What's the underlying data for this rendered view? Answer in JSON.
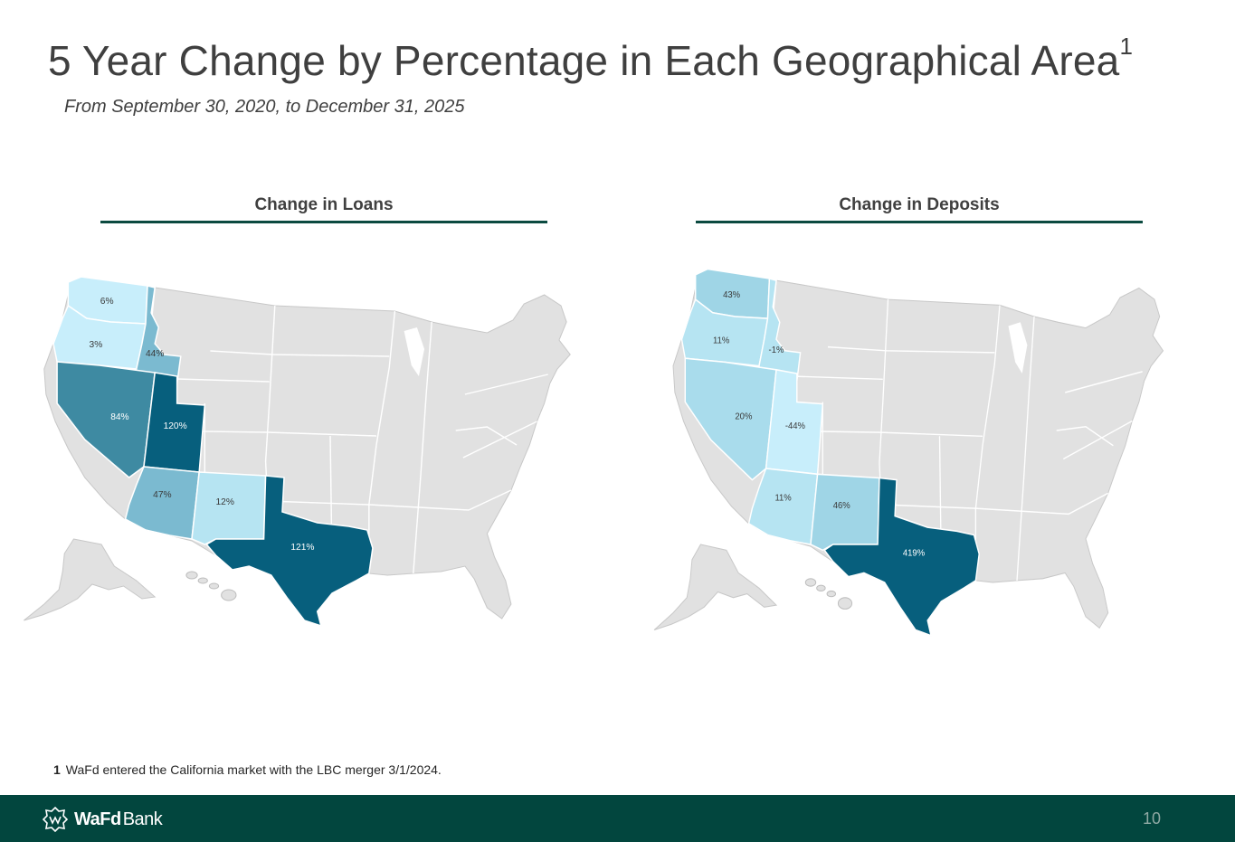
{
  "slide": {
    "title": "5 Year Change by Percentage in Each Geographical Area",
    "title_superscript": "1",
    "subtitle": "From September 30, 2020, to December 31, 2025"
  },
  "loans_map": {
    "heading": "Change in Loans",
    "states": [
      {
        "state": "Washington",
        "label": "6%",
        "color": "#c8eefb"
      },
      {
        "state": "Oregon",
        "label": "3%",
        "color": "#c8eefb"
      },
      {
        "state": "Idaho",
        "label": "44%",
        "color": "#7bbad0"
      },
      {
        "state": "Nevada",
        "label": "84%",
        "color": "#3e8aa2"
      },
      {
        "state": "Utah",
        "label": "120%",
        "color": "#075f7d"
      },
      {
        "state": "Arizona",
        "label": "47%",
        "color": "#7bbad0"
      },
      {
        "state": "New Mexico",
        "label": "12%",
        "color": "#b6e4f2"
      },
      {
        "state": "Texas",
        "label": "121%",
        "color": "#075f7d"
      }
    ]
  },
  "deposits_map": {
    "heading": "Change in Deposits",
    "states": [
      {
        "state": "Washington",
        "label": "43%",
        "color": "#9fd5e6"
      },
      {
        "state": "Oregon",
        "label": "11%",
        "color": "#b6e4f2"
      },
      {
        "state": "Idaho",
        "label": "-1%",
        "color": "#b6e4f2"
      },
      {
        "state": "Nevada",
        "label": "20%",
        "color": "#a9dcec"
      },
      {
        "state": "Utah",
        "label": "-44%",
        "color": "#c8eefb"
      },
      {
        "state": "Arizona",
        "label": "11%",
        "color": "#b6e4f2"
      },
      {
        "state": "New Mexico",
        "label": "46%",
        "color": "#9fd5e6"
      },
      {
        "state": "Texas",
        "label": "419%",
        "color": "#075f7d"
      }
    ]
  },
  "other_states_color": "#e1e1e1",
  "state_border_color": "#ffffff",
  "footnote": {
    "marker": "1",
    "text": "WaFd entered the California market with the LBC merger 3/1/2024."
  },
  "footer": {
    "logo_text_bold": "WaFd",
    "logo_text_regular": "Bank",
    "page_number": "10",
    "background": "#02463e"
  }
}
